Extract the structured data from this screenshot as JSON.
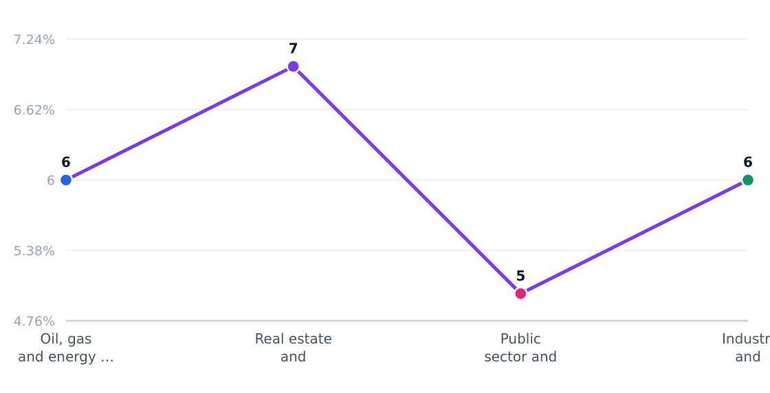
{
  "chart_data": {
    "type": "line",
    "categories": [
      [
        "Oil, gas",
        "and energy …"
      ],
      [
        "Real estate",
        "and"
      ],
      [
        "Public",
        "sector and"
      ],
      [
        "Industri",
        "and"
      ]
    ],
    "series": [
      {
        "values": [
          6,
          7,
          5,
          6
        ]
      }
    ],
    "data_labels": [
      "6",
      "7",
      "5",
      "6"
    ],
    "y_ticks": [
      {
        "value": 7.24,
        "label": "7.24%"
      },
      {
        "value": 6.62,
        "label": "6.62%"
      },
      {
        "value": 6,
        "label": "6"
      },
      {
        "value": 5.38,
        "label": "5.38%"
      },
      {
        "value": 4.76,
        "label": "4.76%"
      }
    ],
    "ylim": [
      4.76,
      7.24
    ],
    "grid": true,
    "legend": "none",
    "colors": {
      "line": "#7c3aed",
      "points": [
        "#2563eb",
        "#7c3aed",
        "#db2777",
        "#059669"
      ]
    }
  }
}
